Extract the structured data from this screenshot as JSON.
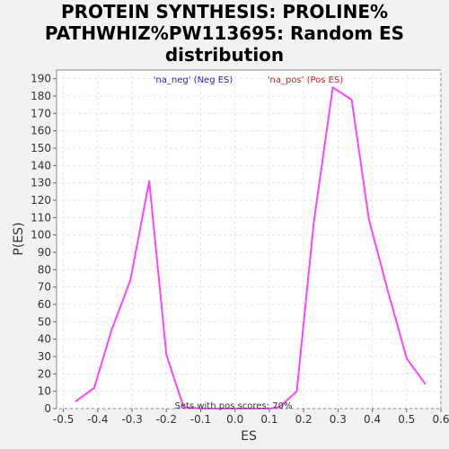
{
  "chart_data": {
    "type": "line",
    "title_lines": [
      "PROTEIN SYNTHESIS: PROLINE%",
      "PATHWHIZ%PW113695: Random ES",
      "distribution"
    ],
    "xlabel": "ES",
    "ylabel": "P(ES)",
    "xlim": [
      -0.52,
      0.6
    ],
    "ylim": [
      0,
      195
    ],
    "xticks": [
      -0.5,
      -0.4,
      -0.3,
      -0.2,
      -0.1,
      0.0,
      0.1,
      0.2,
      0.3,
      0.4,
      0.5,
      0.6
    ],
    "xtick_labels": [
      "-0.5",
      "-0.4",
      "-0.3",
      "-0.2",
      "-0.1",
      "0.0",
      "0.1",
      "0.2",
      "0.3",
      "0.4",
      "0.5",
      "0.6"
    ],
    "yticks": [
      0,
      10,
      20,
      30,
      40,
      50,
      60,
      70,
      80,
      90,
      100,
      110,
      120,
      130,
      140,
      150,
      160,
      170,
      180,
      190
    ],
    "grid": true,
    "legend": [
      {
        "label": "'na_neg' (Neg ES)",
        "color": "#2222cc"
      },
      {
        "label": "'na_pos' (Pos ES)",
        "color": "#cc2222"
      }
    ],
    "annotation": "Sets with pos scores: 70%",
    "series": [
      {
        "color": "#ff44ff",
        "x": [
          -0.465,
          -0.41,
          -0.36,
          -0.305,
          -0.25,
          -0.2,
          -0.15,
          -0.1,
          -0.05,
          0.0,
          0.05,
          0.1,
          0.13,
          0.18,
          0.23,
          0.285,
          0.34,
          0.39,
          0.445,
          0.5,
          0.555
        ],
        "y": [
          4,
          12,
          45,
          74,
          131,
          31,
          1,
          0,
          0,
          0,
          0,
          0,
          1,
          10,
          108,
          185,
          178,
          109,
          68,
          29,
          14
        ]
      }
    ]
  }
}
